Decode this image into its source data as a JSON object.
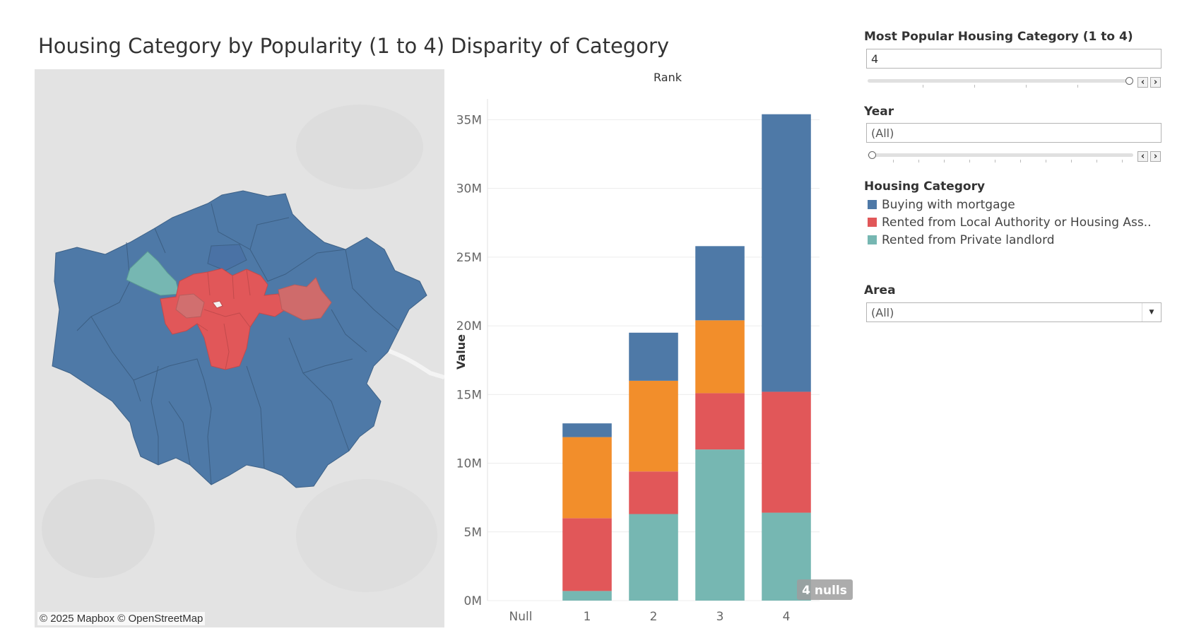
{
  "map": {
    "title": "Housing Category by Popularity (1 to 4)",
    "credit": "© 2025 Mapbox © OpenStreetMap"
  },
  "chart_data": {
    "type": "bar",
    "stacked": true,
    "title": "Disparity of Category",
    "xlabel": "Rank",
    "ylabel": "Value",
    "categories": [
      "Null",
      "1",
      "2",
      "3",
      "4"
    ],
    "ylim": [
      0,
      36000000
    ],
    "yticks": [
      0,
      5000000,
      10000000,
      15000000,
      20000000,
      25000000,
      30000000,
      35000000
    ],
    "ytick_labels": [
      "0M",
      "5M",
      "10M",
      "15M",
      "20M",
      "25M",
      "30M",
      "35M"
    ],
    "series": [
      {
        "name": "Rented from Private landlord",
        "color": "#76b7b2",
        "values": [
          0,
          700000,
          6300000,
          11000000,
          6400000
        ]
      },
      {
        "name": "Rented from Local Authority or Housing Ass..",
        "color": "#e15759",
        "values": [
          0,
          5300000,
          3100000,
          4100000,
          8800000
        ]
      },
      {
        "name": "",
        "color": "#f28e2b",
        "values": [
          0,
          5900000,
          6600000,
          5300000,
          0
        ]
      },
      {
        "name": "Buying with mortgage",
        "color": "#4e79a7",
        "values": [
          0,
          1000000,
          3500000,
          5400000,
          20200000
        ]
      }
    ],
    "grid": true,
    "null_indicator": "4 nulls"
  },
  "filters": {
    "popularity": {
      "label": "Most Popular Housing Category (1 to 4)",
      "value": "4",
      "slider_position": 1.0
    },
    "year": {
      "label": "Year",
      "value": "(All)",
      "slider_position": 0.0
    },
    "area": {
      "label": "Area",
      "value": "(All)"
    }
  },
  "legend": {
    "title": "Housing Category",
    "items": [
      {
        "label": "Buying with mortgage",
        "color": "#4e79a7"
      },
      {
        "label": "Rented from Local Authority or Housing Ass..",
        "color": "#e15759"
      },
      {
        "label": "Rented from Private landlord",
        "color": "#76b7b2"
      }
    ]
  },
  "icons": {
    "prev": "chevron-left-icon",
    "next": "chevron-right-icon",
    "dropdown": "dropdown-arrow-icon"
  }
}
